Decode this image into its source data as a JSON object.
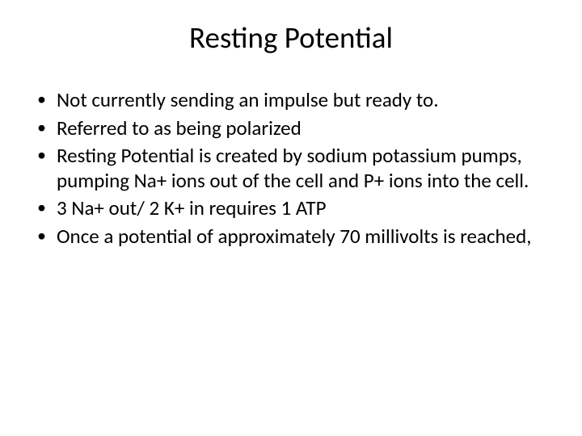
{
  "slide": {
    "title": "Resting Potential",
    "title_fontsize": 37,
    "title_color": "#000000",
    "background_color": "#ffffff",
    "body_fontsize": 25,
    "body_color": "#000000",
    "bullets": [
      "Not currently sending an impulse but ready to.",
      "Referred to as being polarized",
      "Resting Potential is created by sodium potassium pumps, pumping Na+ ions out of the cell and P+ ions into the cell.",
      "3 Na+ out/ 2 K+ in requires 1 ATP",
      "Once a potential of approximately 70 millivolts is reached,"
    ]
  }
}
